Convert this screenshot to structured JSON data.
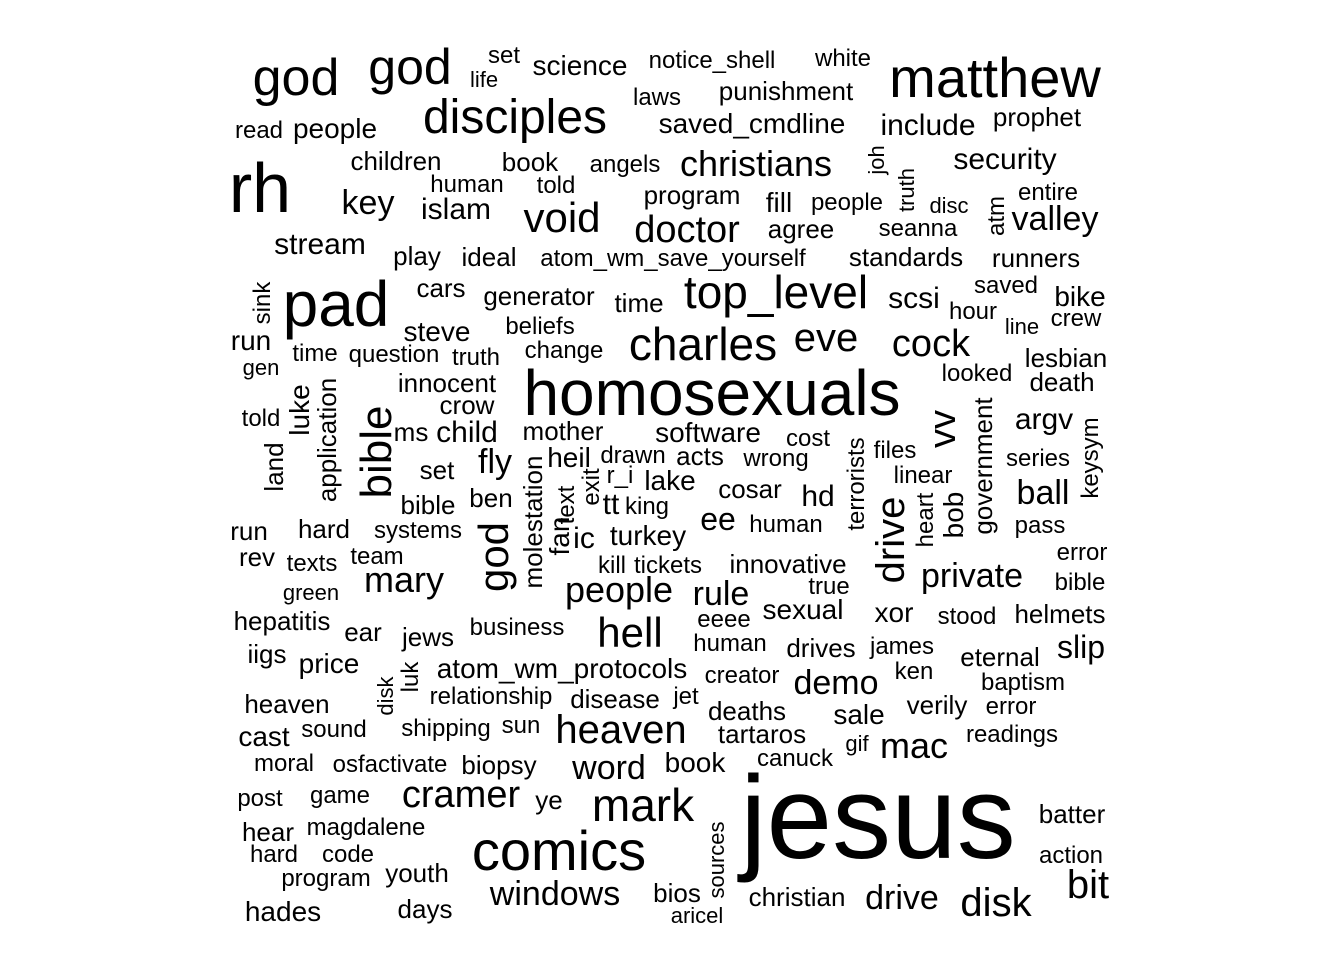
{
  "cloud": {
    "words": [
      "jesus",
      "homosexuals",
      "rh",
      "pad",
      "matthew",
      "god",
      "god",
      "comics",
      "top_level",
      "charles",
      "disciples",
      "mark",
      "bible",
      "god",
      "heaven",
      "hell",
      "void",
      "doctor",
      "christians",
      "cramer",
      "eve",
      "cock",
      "mary",
      "people",
      "drive",
      "disk",
      "bit",
      "mac",
      "windows",
      "private",
      "vv",
      "include",
      "security",
      "valley",
      "word",
      "demo",
      "key",
      "islam",
      "stream",
      "rule",
      "ball",
      "fill",
      "agree",
      "scsi",
      "lake",
      "ee",
      "fly",
      "drive",
      "science",
      "punishment",
      "laws",
      "saved_cmdline",
      "notice_shell",
      "white",
      "set",
      "life",
      "prophet",
      "people",
      "read",
      "children",
      "book",
      "angels",
      "human",
      "told",
      "program",
      "people",
      "seanna",
      "entire",
      "disc",
      "standards",
      "runners",
      "play",
      "ideal",
      "atom_wm_save_yourself",
      "cars",
      "generator",
      "time",
      "saved",
      "bike",
      "hour",
      "line",
      "crew",
      "run",
      "steve",
      "beliefs",
      "sink",
      "gen",
      "time",
      "question",
      "truth",
      "change",
      "lesbian",
      "looked",
      "death",
      "innocent",
      "crow",
      "told",
      "luke",
      "application",
      "land",
      "ms",
      "child",
      "mother",
      "software",
      "cost",
      "files",
      "terrorists",
      "argv",
      "keysym",
      "series",
      "heil",
      "drawn",
      "acts",
      "wrong",
      "r_i",
      "exit",
      "text",
      "king",
      "linear",
      "set",
      "bible",
      "ben",
      "cosar",
      "hd",
      "bob",
      "government",
      "run",
      "hard",
      "systems",
      "turkey",
      "human",
      "pass",
      "heart",
      "rev",
      "texts",
      "team",
      "molestation",
      "fan",
      "ic",
      "tt",
      "kill",
      "tickets",
      "innovative",
      "true",
      "error",
      "bible",
      "green",
      "sexual",
      "xor",
      "stood",
      "helmets",
      "hepatitis",
      "ear",
      "jews",
      "business",
      "eeee",
      "human",
      "drives",
      "james",
      "eternal",
      "slip",
      "iigs",
      "price",
      "luk",
      "atom_wm_protocols",
      "creator",
      "ken",
      "baptism",
      "heaven",
      "disk",
      "relationship",
      "disease",
      "jet",
      "deaths",
      "verily",
      "error",
      "cast",
      "sound",
      "shipping",
      "sun",
      "tartaros",
      "sale",
      "gif",
      "readings",
      "moral",
      "osfactivate",
      "biopsy",
      "book",
      "canuck",
      "post",
      "game",
      "ye",
      "batter",
      "hear",
      "magdalene",
      "hard",
      "code",
      "action",
      "youth",
      "program",
      "sources",
      "hades",
      "days",
      "bios",
      "aricel",
      "christian",
      "atm",
      "truth",
      "joh"
    ]
  }
}
